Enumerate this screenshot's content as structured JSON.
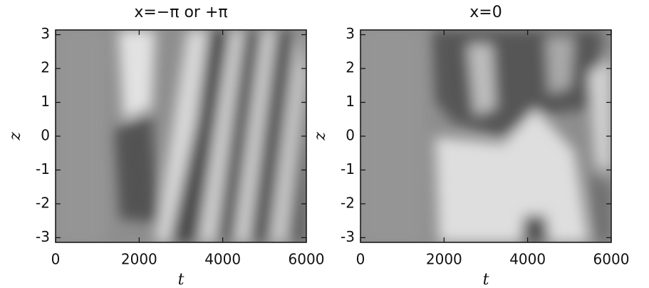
{
  "chart_data": [
    {
      "type": "heatmap",
      "title": "x=−π or +π",
      "xlabel": "t",
      "ylabel": "z",
      "xlim": [
        0,
        6000
      ],
      "xticks": [
        0,
        2000,
        4000,
        6000
      ],
      "ylim": [
        -3.14,
        3.14
      ],
      "yticks": [
        -3,
        -2,
        -1,
        0,
        1,
        2,
        3
      ]
    },
    {
      "type": "heatmap",
      "title": "x=0",
      "xlabel": "t",
      "ylabel": "z",
      "xlim": [
        0,
        6000
      ],
      "xticks": [
        0,
        2000,
        4000,
        6000
      ],
      "ylim": [
        -3.14,
        3.14
      ],
      "yticks": [
        -3,
        -2,
        -1,
        0,
        1,
        2,
        3
      ]
    }
  ]
}
